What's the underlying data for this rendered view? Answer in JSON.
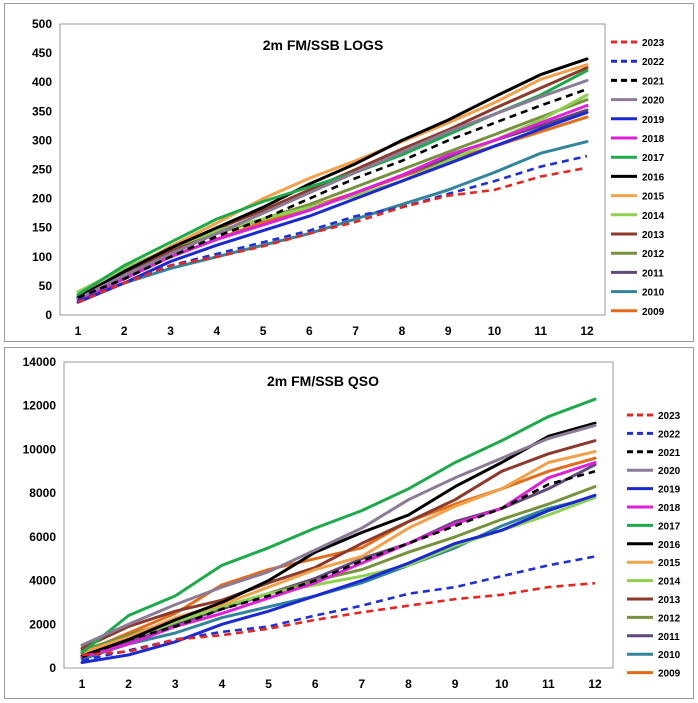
{
  "chart_data": [
    {
      "type": "line",
      "title": "2m FM/SSB  LOGS",
      "xlabel": "",
      "ylabel": "",
      "x": [
        1,
        2,
        3,
        4,
        5,
        6,
        7,
        8,
        9,
        10,
        11,
        12
      ],
      "ylim": [
        0,
        500
      ],
      "yticks": [
        0,
        50,
        100,
        150,
        200,
        250,
        300,
        350,
        400,
        450,
        500
      ],
      "grid": false,
      "legend_position": "right",
      "series": [
        {
          "name": "2023",
          "color": "#e8251f",
          "dash": "dash",
          "values": [
            22,
            55,
            85,
            100,
            118,
            140,
            160,
            185,
            205,
            215,
            238,
            253
          ]
        },
        {
          "name": "2022",
          "color": "#1f2fd8",
          "dash": "dash",
          "values": [
            25,
            55,
            85,
            105,
            125,
            145,
            170,
            185,
            208,
            230,
            255,
            273
          ]
        },
        {
          "name": "2021",
          "color": "#000000",
          "dash": "dash",
          "values": [
            30,
            62,
            100,
            135,
            165,
            200,
            235,
            265,
            300,
            330,
            360,
            388
          ]
        },
        {
          "name": "2020",
          "color": "#8b7b96",
          "dash": "solid",
          "values": [
            28,
            68,
            105,
            140,
            175,
            210,
            245,
            280,
            315,
            345,
            375,
            403
          ]
        },
        {
          "name": "2019",
          "color": "#1a29d4",
          "dash": "solid",
          "values": [
            22,
            55,
            92,
            120,
            145,
            170,
            200,
            230,
            260,
            290,
            320,
            348
          ]
        },
        {
          "name": "2018",
          "color": "#e020d8",
          "dash": "solid",
          "values": [
            27,
            62,
            100,
            130,
            155,
            180,
            210,
            240,
            275,
            300,
            330,
            360
          ]
        },
        {
          "name": "2017",
          "color": "#1daa4a",
          "dash": "solid",
          "values": [
            35,
            85,
            125,
            165,
            195,
            220,
            245,
            275,
            310,
            345,
            378,
            420
          ]
        },
        {
          "name": "2016",
          "color": "#000000",
          "dash": "solid",
          "values": [
            30,
            75,
            115,
            150,
            185,
            225,
            260,
            300,
            335,
            375,
            413,
            440
          ]
        },
        {
          "name": "2015",
          "color": "#f2a14a",
          "dash": "solid",
          "values": [
            32,
            75,
            118,
            158,
            200,
            235,
            265,
            298,
            330,
            365,
            405,
            430
          ]
        },
        {
          "name": "2014",
          "color": "#8fd14f",
          "dash": "solid",
          "values": [
            40,
            80,
            115,
            145,
            165,
            185,
            205,
            230,
            265,
            300,
            335,
            378
          ]
        },
        {
          "name": "2013",
          "color": "#8b3a2b",
          "dash": "solid",
          "values": [
            30,
            70,
            110,
            148,
            180,
            215,
            250,
            285,
            318,
            355,
            390,
            425
          ]
        },
        {
          "name": "2012",
          "color": "#76923c",
          "dash": "solid",
          "values": [
            35,
            72,
            110,
            140,
            165,
            190,
            220,
            250,
            280,
            310,
            340,
            370
          ]
        },
        {
          "name": "2011",
          "color": "#5f497a",
          "dash": "solid",
          "values": [
            30,
            65,
            100,
            130,
            155,
            180,
            210,
            240,
            270,
            300,
            325,
            352
          ]
        },
        {
          "name": "2010",
          "color": "#31849b",
          "dash": "solid",
          "values": [
            28,
            55,
            80,
            100,
            120,
            140,
            165,
            190,
            215,
            245,
            278,
            298
          ]
        },
        {
          "name": "2009",
          "color": "#e36c1a",
          "dash": "solid",
          "values": [
            28,
            65,
            100,
            130,
            160,
            185,
            210,
            238,
            265,
            290,
            315,
            340
          ]
        }
      ]
    },
    {
      "type": "line",
      "title": "2m FM/SSB  QSO",
      "xlabel": "",
      "ylabel": "",
      "x": [
        1,
        2,
        3,
        4,
        5,
        6,
        7,
        8,
        9,
        10,
        11,
        12
      ],
      "ylim": [
        0,
        14000
      ],
      "yticks": [
        0,
        2000,
        4000,
        6000,
        8000,
        10000,
        12000,
        14000
      ],
      "grid": false,
      "legend_position": "right",
      "series": [
        {
          "name": "2023",
          "color": "#e8251f",
          "dash": "dash",
          "values": [
            600,
            750,
            1300,
            1500,
            1800,
            2200,
            2550,
            2850,
            3150,
            3350,
            3700,
            3880
          ]
        },
        {
          "name": "2022",
          "color": "#1f2fd8",
          "dash": "dash",
          "values": [
            350,
            800,
            1300,
            1650,
            1900,
            2400,
            2850,
            3400,
            3700,
            4200,
            4700,
            5100
          ]
        },
        {
          "name": "2021",
          "color": "#000000",
          "dash": "dash",
          "values": [
            500,
            1300,
            1900,
            2700,
            3300,
            4000,
            4900,
            5700,
            6500,
            7300,
            8400,
            9000
          ]
        },
        {
          "name": "2020",
          "color": "#8b7b96",
          "dash": "solid",
          "values": [
            1050,
            2000,
            2900,
            3700,
            4400,
            5400,
            6400,
            7700,
            8700,
            9600,
            10500,
            11100
          ]
        },
        {
          "name": "2019",
          "color": "#1a29d4",
          "dash": "solid",
          "values": [
            250,
            600,
            1200,
            2000,
            2600,
            3300,
            4000,
            4800,
            5700,
            6300,
            7200,
            7900
          ]
        },
        {
          "name": "2018",
          "color": "#e020d8",
          "dash": "solid",
          "values": [
            500,
            1100,
            1900,
            2500,
            3200,
            3900,
            4800,
            5700,
            6600,
            7300,
            8700,
            9400
          ]
        },
        {
          "name": "2017",
          "color": "#1daa4a",
          "dash": "solid",
          "values": [
            700,
            2400,
            3300,
            4700,
            5500,
            6400,
            7200,
            8200,
            9400,
            10400,
            11500,
            12300
          ]
        },
        {
          "name": "2016",
          "color": "#000000",
          "dash": "solid",
          "values": [
            550,
            1300,
            2200,
            3000,
            4000,
            5300,
            6200,
            7000,
            8300,
            9400,
            10600,
            11200
          ]
        },
        {
          "name": "2015",
          "color": "#f2a14a",
          "dash": "solid",
          "values": [
            700,
            1400,
            2300,
            2900,
            3700,
            4500,
            5100,
            6400,
            7400,
            8200,
            9400,
            9900
          ]
        },
        {
          "name": "2014",
          "color": "#8fd14f",
          "dash": "solid",
          "values": [
            600,
            1300,
            2100,
            2800,
            3400,
            3800,
            4200,
            4700,
            5600,
            6300,
            7000,
            7800
          ]
        },
        {
          "name": "2013",
          "color": "#8b3a2b",
          "dash": "solid",
          "values": [
            900,
            1900,
            2600,
            3100,
            3900,
            4600,
            5700,
            6700,
            7700,
            9000,
            9800,
            10400
          ]
        },
        {
          "name": "2012",
          "color": "#76923c",
          "dash": "solid",
          "values": [
            800,
            1500,
            2200,
            2800,
            3400,
            4000,
            4500,
            5300,
            6000,
            6800,
            7500,
            8300
          ]
        },
        {
          "name": "2011",
          "color": "#5f497a",
          "dash": "solid",
          "values": [
            500,
            1200,
            2000,
            2700,
            3400,
            4100,
            5000,
            5700,
            6700,
            7300,
            8200,
            9300
          ]
        },
        {
          "name": "2010",
          "color": "#31849b",
          "dash": "solid",
          "values": [
            400,
            1100,
            1600,
            2300,
            2800,
            3300,
            3900,
            4700,
            5500,
            6500,
            7300,
            7800
          ]
        },
        {
          "name": "2009",
          "color": "#e36c1a",
          "dash": "solid",
          "values": [
            700,
            1600,
            2500,
            3800,
            4500,
            5000,
            5500,
            6700,
            7500,
            8200,
            9000,
            9600
          ]
        }
      ]
    }
  ]
}
